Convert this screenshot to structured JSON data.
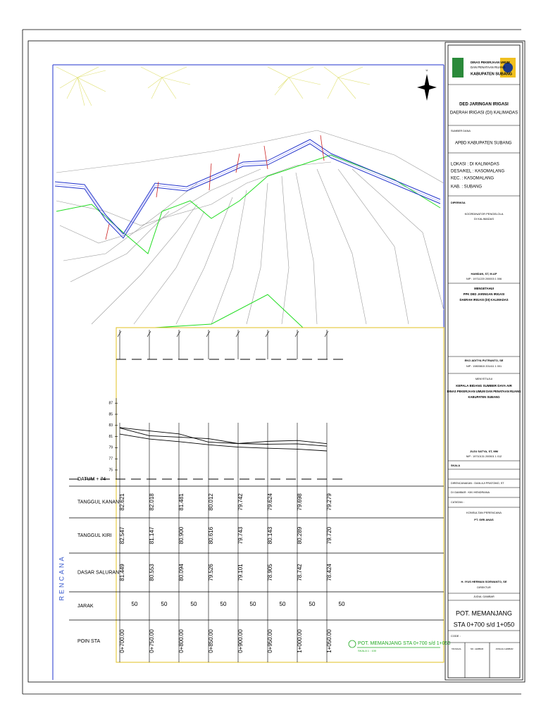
{
  "plan": {
    "label": "RENCANA",
    "north": "U"
  },
  "title_block": [
    "DINAS PEKERJAAN UMUM",
    "DAN PENATAAN RUANG",
    "KABUPATEN SUBANG",
    "DED JARINGAN IRIGASI",
    "DAERAH IRIGASI (DI) KALIMADAS",
    "SUMBER DANA",
    "APBD KABUPATEN SUBANG",
    "LOKASI : DI KALIMADAS",
    "DESA/KEL : KASOMALANG",
    "KEC. : KASOMALANG",
    "KAB. : SUBANG",
    "DIPERIKSA",
    "KOORDINATOR PENGELOLA",
    "DI KALIMADAS",
    "HAMDAN, ST, M.AP",
    "NIP : 19711220 200003 1 006",
    "MENGETAHUI",
    "PPK DED JARINGAN IRIGASI",
    "DAERAH IRIGASI (DI) KALIMADAS",
    "EKO ADITYA PUTRANTO, SE",
    "NIP : 19800815 201411 1 001",
    "MENYETUJUI",
    "KEPALA BIDANG SUMBER DAYA AIR",
    "DINAS PEKERJAAN UMUM DAN PENATAAN RUANG",
    "KABUPATEN SUBANG",
    "JUJU SATYA, ST, MM",
    "NIP : 19710131 200501 1 012",
    "SKALA",
    "DIRENCANAKAN : DIAN AJI PRATOMO, ST",
    "DI GAMBAR : KIKI HENDRIANA",
    "CATATAN :",
    "KONSULTAN PERENCANA",
    "PT. GIRI ANAS",
    "H. IYUS HERMAN SOEWANTO, SE",
    "DIREKTUR",
    "JUDUL GAMBAR",
    "POT. MEMANJANG",
    "STA 0+700 s/d 1+050",
    "CODE :",
    "TANGGAL",
    "NO. LEMBAR",
    "JUMLAH LEMBAR"
  ],
  "profile": {
    "yticks": [
      75,
      77,
      79,
      81,
      83,
      85,
      87
    ],
    "datum": "DATUM + 74",
    "rows": [
      {
        "label": "TANGGUL KANAN",
        "values": [
          "82.621",
          "82.018",
          "81.481",
          "80.012",
          "79.742",
          "79.624",
          "79.698",
          "79.279"
        ]
      },
      {
        "label": "TANGGUL KIRI",
        "values": [
          "82.547",
          "81.147",
          "80.900",
          "80.616",
          "79.743",
          "80.143",
          "80.289",
          "79.720"
        ]
      },
      {
        "label": "DASAR SALURAN",
        "values": [
          "81.449",
          "80.553",
          "80.094",
          "79.526",
          "79.101",
          "78.905",
          "78.742",
          "78.424"
        ]
      }
    ],
    "jarak": {
      "label": "JARAK",
      "values": [
        50,
        50,
        50,
        50,
        50,
        50,
        50,
        50
      ]
    },
    "stations": {
      "label": "POIN STA",
      "values": [
        "0+700.00",
        "0+750.00",
        "0+800.00",
        "0+850.00",
        "0+900.00",
        "0+950.00",
        "1+000.00",
        "1+050.00"
      ]
    },
    "caption": "POT. MEMANJANG STA 0+700 s/d 1+050",
    "scale": "SKALA 1 : 100"
  }
}
